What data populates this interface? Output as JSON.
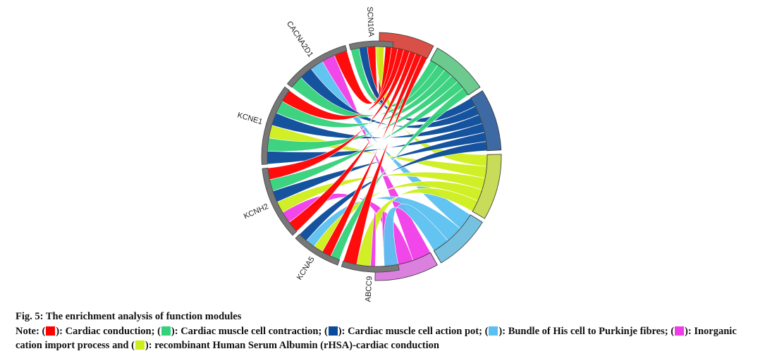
{
  "figure": {
    "title": "Fig. 5: The enrichment analysis of function modules",
    "note_prefix": "Note: ("
  },
  "modules": [
    {
      "label": "Cardiac conduction",
      "color": "#ff0000",
      "sep": "; ("
    },
    {
      "label": "Cardiac muscle cell contraction",
      "color": "#33d17a",
      "sep": "; ("
    },
    {
      "label": "Cardiac muscle cell action pot",
      "color": "#0a4a9a",
      "sep": "; ("
    },
    {
      "label": "Bundle of His cell to Purkinje fibres",
      "color": "#5bc0f0",
      "sep": "; ("
    },
    {
      "label": "Inorganic cation import process",
      "color": "#f03ce8",
      "sep": " and ("
    },
    {
      "label": "recombinant Human Serum Albumin (rHSA)-cardiac conduction",
      "color": "#cdee1a",
      "sep": ""
    }
  ],
  "genes": [
    "SCN10A",
    "CACNA2D1",
    "KCNE1",
    "KCNH2",
    "KCNA5",
    "ABCC9"
  ],
  "icons": {
    "swatch": "color-swatch-icon"
  }
}
